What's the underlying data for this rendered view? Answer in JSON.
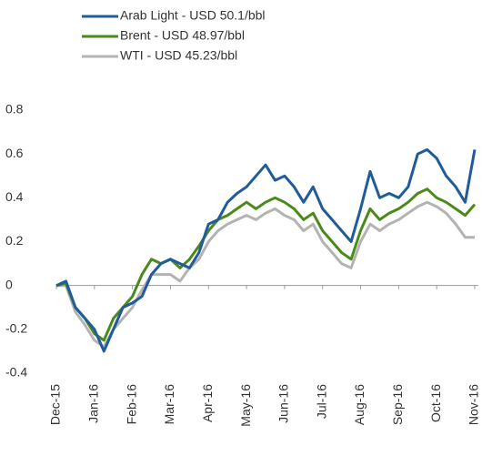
{
  "chart_data": {
    "type": "line",
    "categories": [
      "Dec-15",
      null,
      null,
      null,
      "Jan-16",
      null,
      null,
      null,
      "Feb-16",
      null,
      null,
      null,
      "Mar-16",
      null,
      null,
      null,
      "Apr-16",
      null,
      null,
      null,
      "May-16",
      null,
      null,
      null,
      "Jun-16",
      null,
      null,
      null,
      "Jul-16",
      null,
      null,
      null,
      "Aug-16",
      null,
      null,
      null,
      "Sep-16",
      null,
      null,
      null,
      "Oct-16",
      null,
      null,
      null,
      "Nov-16"
    ],
    "series": [
      {
        "name": "Arab Light - USD 50.1/bbl",
        "color": "#1f5c99",
        "values": [
          0,
          0.02,
          -0.1,
          -0.15,
          -0.2,
          -0.3,
          -0.2,
          -0.1,
          -0.08,
          -0.05,
          0.05,
          0.1,
          0.12,
          0.1,
          0.08,
          0.15,
          0.28,
          0.3,
          0.38,
          0.42,
          0.45,
          0.5,
          0.55,
          0.48,
          0.5,
          0.45,
          0.38,
          0.45,
          0.35,
          0.3,
          0.25,
          0.2,
          0.35,
          0.52,
          0.4,
          0.42,
          0.4,
          0.45,
          0.6,
          0.62,
          0.58,
          0.5,
          0.45,
          0.38,
          0.62
        ]
      },
      {
        "name": "Brent - USD 48.97/bbl",
        "color": "#4a8a1a",
        "values": [
          0,
          0.01,
          -0.1,
          -0.15,
          -0.22,
          -0.25,
          -0.15,
          -0.1,
          -0.05,
          0.05,
          0.12,
          0.1,
          0.12,
          0.08,
          0.12,
          0.18,
          0.25,
          0.3,
          0.32,
          0.35,
          0.38,
          0.35,
          0.38,
          0.4,
          0.38,
          0.35,
          0.3,
          0.33,
          0.25,
          0.2,
          0.15,
          0.12,
          0.25,
          0.35,
          0.3,
          0.33,
          0.35,
          0.38,
          0.42,
          0.44,
          0.4,
          0.38,
          0.35,
          0.32,
          0.37
        ]
      },
      {
        "name": "WTI - USD 45.23/bbl",
        "color": "#b3b3b3",
        "values": [
          0,
          0,
          -0.12,
          -0.18,
          -0.25,
          -0.28,
          -0.2,
          -0.15,
          -0.1,
          -0.02,
          0.05,
          0.05,
          0.05,
          0.02,
          0.08,
          0.12,
          0.2,
          0.25,
          0.28,
          0.3,
          0.32,
          0.3,
          0.33,
          0.35,
          0.32,
          0.3,
          0.25,
          0.28,
          0.2,
          0.15,
          0.1,
          0.08,
          0.2,
          0.28,
          0.25,
          0.28,
          0.3,
          0.33,
          0.36,
          0.38,
          0.36,
          0.33,
          0.28,
          0.22,
          0.22
        ]
      }
    ],
    "ylim": [
      -0.4,
      0.8
    ],
    "yticks": [
      {
        "value": -0.4,
        "label": "-0.4"
      },
      {
        "value": -0.2,
        "label": "-0.2"
      },
      0,
      0.2,
      0.4,
      0.6,
      0.8
    ],
    "grid": false,
    "legend": "top-left"
  }
}
